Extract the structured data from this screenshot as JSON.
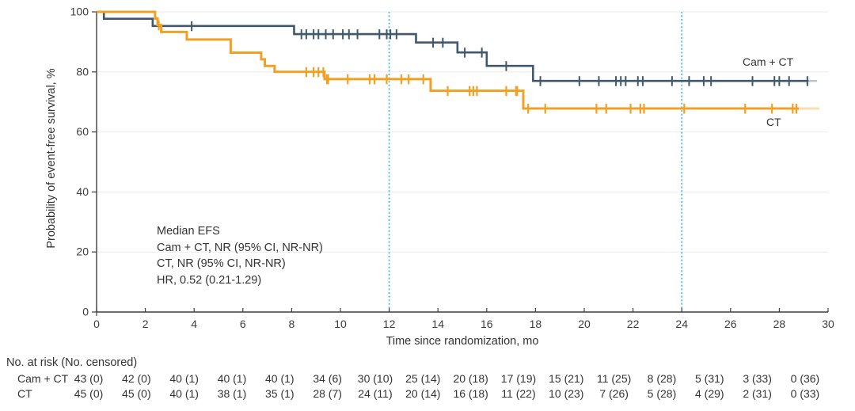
{
  "chart_data": {
    "type": "line",
    "subtype": "kaplan-meier-step",
    "title": "",
    "xlabel": "Time since randomization, mo",
    "ylabel": "Probability of event-free survival, %",
    "xlim": [
      0,
      30
    ],
    "ylim": [
      0,
      100
    ],
    "xticks": [
      0,
      2,
      4,
      6,
      8,
      10,
      12,
      14,
      16,
      18,
      20,
      22,
      24,
      26,
      28,
      30
    ],
    "yticks": [
      0,
      20,
      40,
      60,
      80,
      100
    ],
    "grid": "horizontal light lines at 20/40/60/80/100",
    "legend_position": "labels at right end of each curve",
    "reference_lines_x": [
      12,
      24
    ],
    "colors": {
      "cam_ct": "#41586B",
      "ct": "#F0A125",
      "reference": "#45BCE6",
      "axis": "#3F3F3F",
      "grid": "#EBEBEB",
      "text": "#333333"
    },
    "series": [
      {
        "name": "Cam + CT",
        "color": "#41586B",
        "stroke_width": 2.6,
        "steps": [
          [
            0,
            100
          ],
          [
            0.3,
            97.7
          ],
          [
            2.3,
            95.3
          ],
          [
            8.1,
            92.6
          ],
          [
            13.1,
            89.8
          ],
          [
            14.8,
            86.5
          ],
          [
            16.0,
            82.0
          ],
          [
            17.9,
            77.0
          ],
          [
            29.2,
            77.0
          ]
        ],
        "tail_to": 29.55,
        "censors": [
          3.9,
          8.4,
          8.6,
          8.9,
          9.1,
          9.4,
          9.7,
          10.1,
          10.35,
          10.7,
          11.6,
          11.9,
          12.05,
          12.3,
          13.8,
          14.2,
          15.1,
          15.8,
          16.8,
          18.2,
          19.8,
          20.6,
          21.3,
          21.5,
          21.7,
          22.2,
          22.4,
          23.6,
          24.3,
          24.9,
          25.2,
          26.9,
          27.8,
          28.0,
          28.4,
          29.15
        ]
      },
      {
        "name": "CT",
        "color": "#F0A125",
        "stroke_width": 3,
        "steps": [
          [
            0,
            100
          ],
          [
            2.4,
            97.8
          ],
          [
            2.5,
            95.6
          ],
          [
            2.65,
            93.3
          ],
          [
            3.7,
            90.8
          ],
          [
            5.5,
            86.4
          ],
          [
            6.75,
            84.2
          ],
          [
            6.9,
            82.0
          ],
          [
            7.3,
            80.0
          ],
          [
            9.35,
            77.6
          ],
          [
            13.7,
            73.7
          ],
          [
            17.5,
            67.8
          ],
          [
            28.8,
            67.8
          ]
        ],
        "tail_to": 29.65,
        "censors": [
          2.55,
          8.6,
          8.9,
          9.1,
          9.3,
          9.45,
          9.5,
          10.3,
          11.2,
          11.4,
          11.9,
          12.5,
          12.8,
          13.4,
          14.4,
          15.3,
          15.45,
          15.6,
          16.8,
          17.2,
          17.25,
          17.7,
          18.4,
          20.5,
          20.9,
          21.9,
          22.3,
          22.45,
          24.1,
          26.6,
          27.7,
          28.55,
          28.7
        ]
      }
    ],
    "annotation": {
      "lines": [
        "Median EFS",
        "Cam + CT, NR (95% CI, NR-NR)",
        "CT, NR (95% CI, NR-NR)",
        "HR, 0.52 (0.21-1.29)"
      ]
    },
    "risk_table": {
      "header": "No. at risk (No. censored)",
      "times": [
        0,
        2,
        4,
        6,
        8,
        10,
        12,
        14,
        16,
        18,
        20,
        22,
        24,
        26,
        28,
        30
      ],
      "rows": [
        {
          "label": "Cam + CT",
          "values": [
            "43 (0)",
            "42 (0)",
            "40 (1)",
            "40 (1)",
            "40 (1)",
            "34 (6)",
            "30 (10)",
            "25 (14)",
            "20 (18)",
            "17 (19)",
            "15 (21)",
            "11 (25)",
            "8 (28)",
            "5 (31)",
            "3 (33)",
            "0 (36)"
          ]
        },
        {
          "label": "CT",
          "values": [
            "45 (0)",
            "45 (0)",
            "40 (1)",
            "38 (1)",
            "35 (1)",
            "28 (7)",
            "24 (11)",
            "20 (14)",
            "16 (18)",
            "11 (22)",
            "10 (23)",
            "7 (26)",
            "5 (28)",
            "4 (29)",
            "2 (31)",
            "0 (33)"
          ]
        }
      ]
    }
  }
}
